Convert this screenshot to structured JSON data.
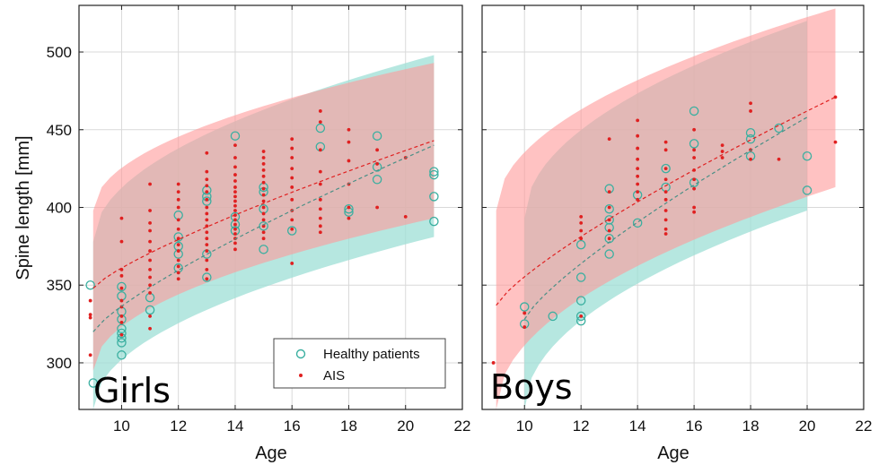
{
  "chart_data": {
    "type": "scatter",
    "ylabel": "Spine length [mm]",
    "xlabel": "Age",
    "xlim": [
      8.5,
      22
    ],
    "ylim": [
      270,
      530
    ],
    "xticks": [
      10,
      12,
      14,
      16,
      18,
      20,
      22
    ],
    "yticks": [
      300,
      350,
      400,
      450,
      500
    ],
    "grid": true,
    "legend": {
      "placement": "bottom-right of left panel",
      "entries": [
        {
          "label": "Healthy patients",
          "marker": "open-circle",
          "color": "#3aafa0"
        },
        {
          "label": "AIS",
          "marker": "dot",
          "color": "#e02020"
        }
      ]
    },
    "colors": {
      "healthy": "#3aafa0",
      "ais": "#e02020",
      "healthy_band": "#9edfd6",
      "ais_band": "#ff9a9a",
      "frame": "#222222",
      "grid": "#d9d9d9"
    },
    "panels": [
      {
        "label": "Girls",
        "healthy_band": {
          "x": [
            9,
            21
          ],
          "lower": [
            270,
            381
          ],
          "upper": [
            378,
            498
          ]
        },
        "ais_band": {
          "x": [
            9,
            21
          ],
          "lower": [
            295,
            393
          ],
          "upper": [
            398,
            493
          ]
        },
        "healthy_trend": {
          "x": [
            9,
            21
          ],
          "y": [
            320,
            440
          ]
        },
        "ais_trend": {
          "x": [
            9,
            21
          ],
          "y": [
            348,
            443
          ]
        },
        "healthy_points": [
          [
            8.9,
            350
          ],
          [
            9.0,
            287
          ],
          [
            10.0,
            349
          ],
          [
            10.0,
            343
          ],
          [
            10.0,
            333
          ],
          [
            10.0,
            328
          ],
          [
            10.0,
            322
          ],
          [
            10.0,
            319
          ],
          [
            10.0,
            316
          ],
          [
            10.0,
            313
          ],
          [
            10.0,
            305
          ],
          [
            11.0,
            342
          ],
          [
            11.0,
            334
          ],
          [
            12.0,
            395
          ],
          [
            12.0,
            381
          ],
          [
            12.0,
            375
          ],
          [
            12.0,
            370
          ],
          [
            12.0,
            361
          ],
          [
            13.0,
            411
          ],
          [
            13.0,
            407
          ],
          [
            13.0,
            404
          ],
          [
            13.0,
            370
          ],
          [
            13.0,
            355
          ],
          [
            14.0,
            446
          ],
          [
            14.0,
            394
          ],
          [
            14.0,
            389
          ],
          [
            14.0,
            385
          ],
          [
            15.0,
            413
          ],
          [
            15.0,
            410
          ],
          [
            15.0,
            399
          ],
          [
            15.0,
            388
          ],
          [
            15.0,
            373
          ],
          [
            16.0,
            385
          ],
          [
            17.0,
            451
          ],
          [
            17.0,
            439
          ],
          [
            18.0,
            399
          ],
          [
            18.0,
            397
          ],
          [
            19.0,
            446
          ],
          [
            19.0,
            426
          ],
          [
            19.0,
            418
          ],
          [
            21.0,
            423
          ],
          [
            21.0,
            421
          ],
          [
            21.0,
            407
          ],
          [
            21.0,
            391
          ]
        ],
        "ais_points": [
          [
            8.9,
            340
          ],
          [
            8.9,
            331
          ],
          [
            8.9,
            329
          ],
          [
            8.9,
            305
          ],
          [
            10.0,
            393
          ],
          [
            10.0,
            378
          ],
          [
            10.0,
            360
          ],
          [
            10.0,
            356
          ],
          [
            10.0,
            348
          ],
          [
            10.0,
            340
          ],
          [
            10.0,
            336
          ],
          [
            10.0,
            330
          ],
          [
            10.0,
            326
          ],
          [
            10.0,
            318
          ],
          [
            11.0,
            415
          ],
          [
            11.0,
            398
          ],
          [
            11.0,
            390
          ],
          [
            11.0,
            385
          ],
          [
            11.0,
            378
          ],
          [
            11.0,
            372
          ],
          [
            11.0,
            366
          ],
          [
            11.0,
            360
          ],
          [
            11.0,
            355
          ],
          [
            11.0,
            350
          ],
          [
            11.0,
            345
          ],
          [
            11.0,
            330
          ],
          [
            11.0,
            322
          ],
          [
            12.0,
            415
          ],
          [
            12.0,
            410
          ],
          [
            12.0,
            405
          ],
          [
            12.0,
            400
          ],
          [
            12.0,
            392
          ],
          [
            12.0,
            386
          ],
          [
            12.0,
            380
          ],
          [
            12.0,
            376
          ],
          [
            12.0,
            372
          ],
          [
            12.0,
            366
          ],
          [
            12.0,
            362
          ],
          [
            12.0,
            358
          ],
          [
            12.0,
            354
          ],
          [
            13.0,
            435
          ],
          [
            13.0,
            423
          ],
          [
            13.0,
            418
          ],
          [
            13.0,
            414
          ],
          [
            13.0,
            410
          ],
          [
            13.0,
            405
          ],
          [
            13.0,
            400
          ],
          [
            13.0,
            396
          ],
          [
            13.0,
            392
          ],
          [
            13.0,
            388
          ],
          [
            13.0,
            384
          ],
          [
            13.0,
            380
          ],
          [
            13.0,
            376
          ],
          [
            13.0,
            372
          ],
          [
            13.0,
            366
          ],
          [
            13.0,
            360
          ],
          [
            13.0,
            354
          ],
          [
            14.0,
            440
          ],
          [
            14.0,
            432
          ],
          [
            14.0,
            426
          ],
          [
            14.0,
            421
          ],
          [
            14.0,
            417
          ],
          [
            14.0,
            413
          ],
          [
            14.0,
            410
          ],
          [
            14.0,
            407
          ],
          [
            14.0,
            404
          ],
          [
            14.0,
            401
          ],
          [
            14.0,
            398
          ],
          [
            14.0,
            395
          ],
          [
            14.0,
            392
          ],
          [
            14.0,
            389
          ],
          [
            14.0,
            386
          ],
          [
            14.0,
            383
          ],
          [
            14.0,
            380
          ],
          [
            14.0,
            377
          ],
          [
            14.0,
            373
          ],
          [
            15.0,
            436
          ],
          [
            15.0,
            432
          ],
          [
            15.0,
            428
          ],
          [
            15.0,
            424
          ],
          [
            15.0,
            420
          ],
          [
            15.0,
            416
          ],
          [
            15.0,
            412
          ],
          [
            15.0,
            408
          ],
          [
            15.0,
            404
          ],
          [
            15.0,
            400
          ],
          [
            15.0,
            396
          ],
          [
            15.0,
            392
          ],
          [
            15.0,
            388
          ],
          [
            15.0,
            384
          ],
          [
            15.0,
            380
          ],
          [
            16.0,
            444
          ],
          [
            16.0,
            438
          ],
          [
            16.0,
            432
          ],
          [
            16.0,
            425
          ],
          [
            16.0,
            419
          ],
          [
            16.0,
            413
          ],
          [
            16.0,
            405
          ],
          [
            16.0,
            398
          ],
          [
            16.0,
            392
          ],
          [
            16.0,
            386
          ],
          [
            16.0,
            364
          ],
          [
            17.0,
            462
          ],
          [
            17.0,
            455
          ],
          [
            17.0,
            437
          ],
          [
            17.0,
            423
          ],
          [
            17.0,
            415
          ],
          [
            17.0,
            405
          ],
          [
            17.0,
            399
          ],
          [
            17.0,
            393
          ],
          [
            17.0,
            388
          ],
          [
            17.0,
            384
          ],
          [
            18.0,
            450
          ],
          [
            18.0,
            442
          ],
          [
            18.0,
            430
          ],
          [
            18.0,
            415
          ],
          [
            18.0,
            400
          ],
          [
            18.0,
            393
          ],
          [
            19.0,
            437
          ],
          [
            19.0,
            428
          ],
          [
            19.0,
            400
          ],
          [
            20.0,
            394
          ],
          [
            20.0,
            432
          ]
        ]
      },
      {
        "label": "Boys",
        "healthy_band": {
          "x": [
            10,
            20
          ],
          "lower": [
            270,
            398
          ],
          "upper": [
            393,
            520
          ]
        },
        "ais_band": {
          "x": [
            9,
            21
          ],
          "lower": [
            270,
            413
          ],
          "upper": [
            398,
            528
          ]
        },
        "healthy_trend": {
          "x": [
            10,
            20
          ],
          "y": [
            328,
            458
          ]
        },
        "ais_trend": {
          "x": [
            9,
            21
          ],
          "y": [
            337,
            471
          ]
        },
        "healthy_points": [
          [
            10.0,
            336
          ],
          [
            10.0,
            325
          ],
          [
            11.0,
            330
          ],
          [
            12.0,
            376
          ],
          [
            12.0,
            355
          ],
          [
            12.0,
            340
          ],
          [
            12.0,
            330
          ],
          [
            12.0,
            327
          ],
          [
            13.0,
            412
          ],
          [
            13.0,
            399
          ],
          [
            13.0,
            392
          ],
          [
            13.0,
            387
          ],
          [
            13.0,
            380
          ],
          [
            13.0,
            370
          ],
          [
            14.0,
            408
          ],
          [
            14.0,
            390
          ],
          [
            15.0,
            425
          ],
          [
            15.0,
            413
          ],
          [
            16.0,
            462
          ],
          [
            16.0,
            441
          ],
          [
            16.0,
            416
          ],
          [
            18.0,
            448
          ],
          [
            18.0,
            444
          ],
          [
            18.0,
            433
          ],
          [
            19.0,
            451
          ],
          [
            20.0,
            433
          ],
          [
            20.0,
            411
          ]
        ],
        "ais_points": [
          [
            8.9,
            300
          ],
          [
            10.0,
            332
          ],
          [
            10.0,
            323
          ],
          [
            12.0,
            394
          ],
          [
            12.0,
            390
          ],
          [
            12.0,
            385
          ],
          [
            12.0,
            380
          ],
          [
            12.0,
            330
          ],
          [
            13.0,
            444
          ],
          [
            13.0,
            410
          ],
          [
            13.0,
            400
          ],
          [
            13.0,
            392
          ],
          [
            13.0,
            385
          ],
          [
            13.0,
            380
          ],
          [
            14.0,
            456
          ],
          [
            14.0,
            446
          ],
          [
            14.0,
            438
          ],
          [
            14.0,
            431
          ],
          [
            14.0,
            425
          ],
          [
            14.0,
            420
          ],
          [
            14.0,
            415
          ],
          [
            14.0,
            410
          ],
          [
            14.0,
            405
          ],
          [
            15.0,
            442
          ],
          [
            15.0,
            437
          ],
          [
            15.0,
            425
          ],
          [
            15.0,
            418
          ],
          [
            15.0,
            410
          ],
          [
            15.0,
            405
          ],
          [
            15.0,
            398
          ],
          [
            15.0,
            392
          ],
          [
            15.0,
            386
          ],
          [
            15.0,
            383
          ],
          [
            16.0,
            450
          ],
          [
            16.0,
            437
          ],
          [
            16.0,
            432
          ],
          [
            16.0,
            424
          ],
          [
            16.0,
            418
          ],
          [
            16.0,
            412
          ],
          [
            16.0,
            400
          ],
          [
            16.0,
            397
          ],
          [
            17.0,
            440
          ],
          [
            17.0,
            436
          ],
          [
            17.0,
            432
          ],
          [
            18.0,
            467
          ],
          [
            18.0,
            462
          ],
          [
            18.0,
            437
          ],
          [
            18.0,
            431
          ],
          [
            19.0,
            431
          ],
          [
            21.0,
            471
          ],
          [
            21.0,
            442
          ]
        ]
      }
    ]
  }
}
